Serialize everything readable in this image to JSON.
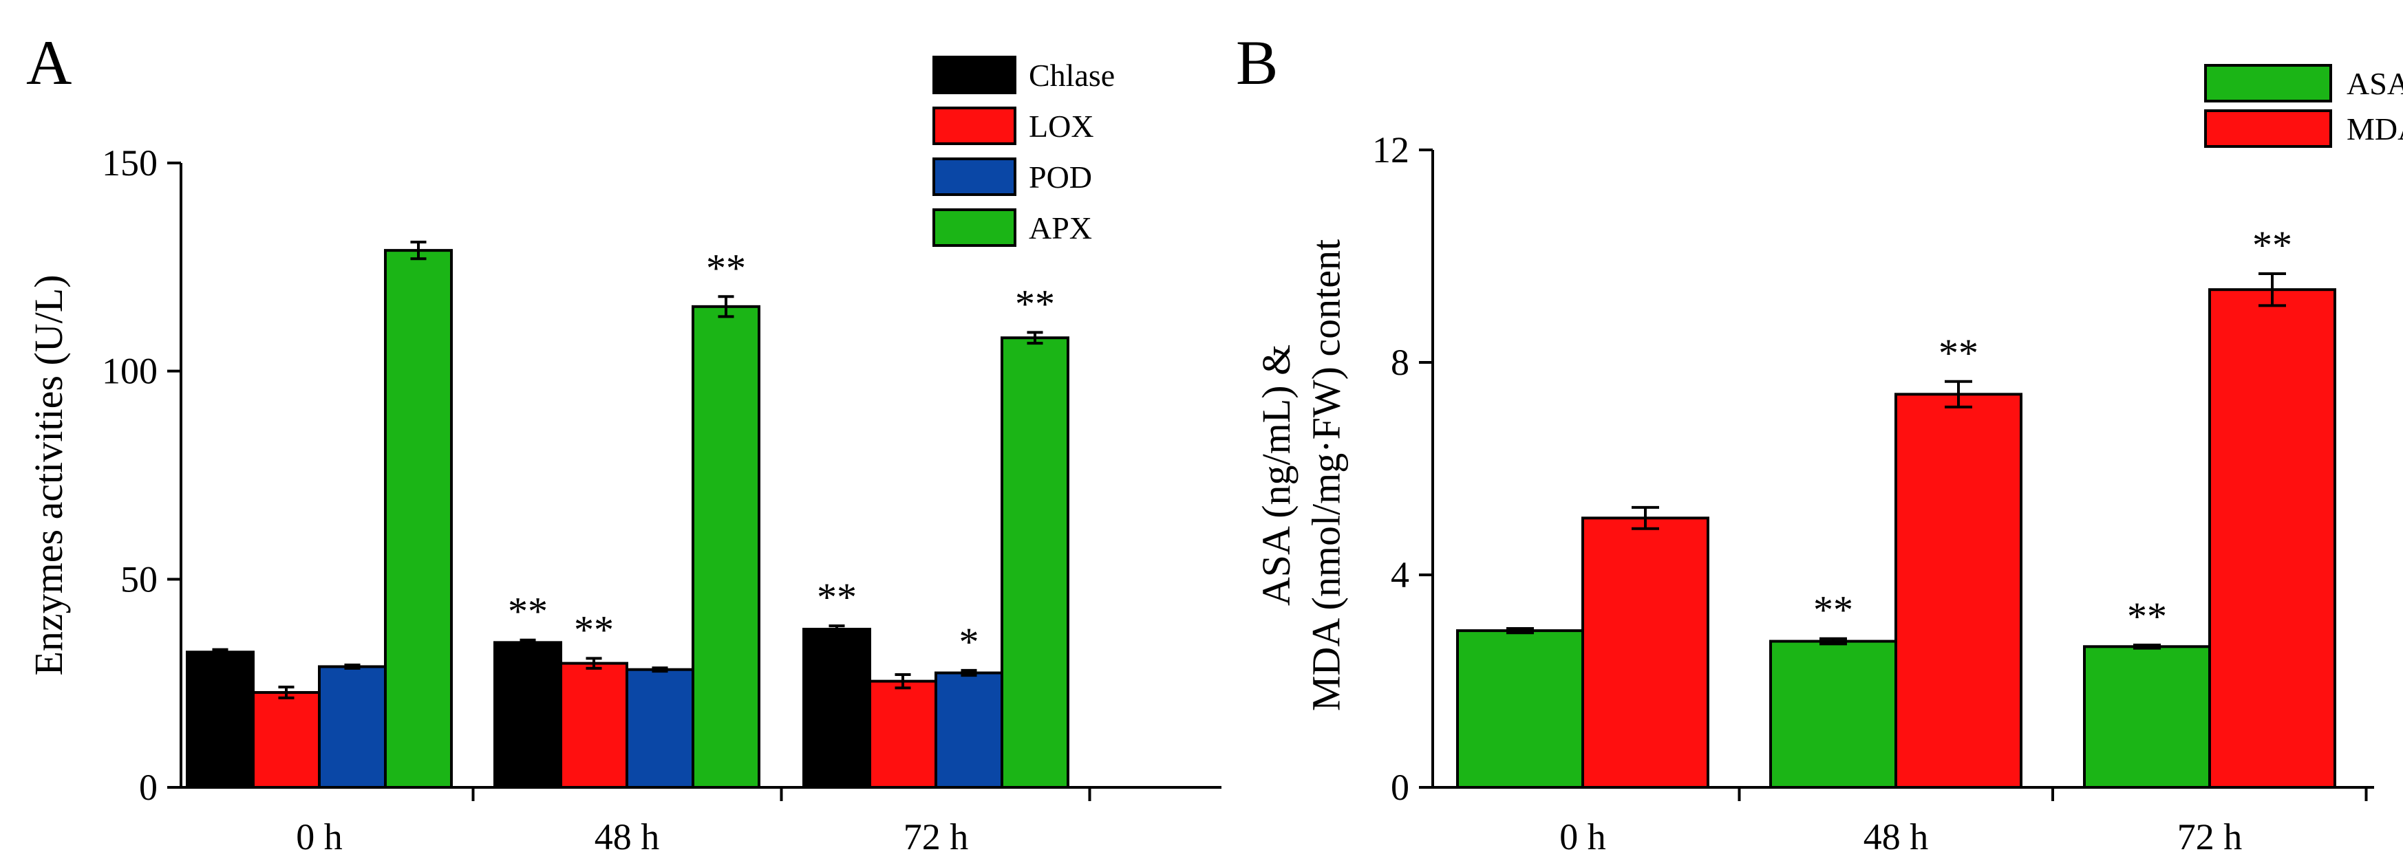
{
  "chart_data": [
    {
      "type": "bar",
      "panel_label": "A",
      "categories": [
        "0 h",
        "48 h",
        "72 h"
      ],
      "series": [
        {
          "name": "Chlase",
          "color": "#000000",
          "values": [
            32.5,
            34.8,
            38.0
          ],
          "errors": [
            0.6,
            0.6,
            0.8
          ],
          "significance": [
            "",
            "**",
            "**"
          ]
        },
        {
          "name": "LOX",
          "color": "#ff0f0f",
          "values": [
            22.8,
            29.8,
            25.5
          ],
          "errors": [
            1.3,
            1.2,
            1.6
          ],
          "significance": [
            "",
            "**",
            ""
          ]
        },
        {
          "name": "POD",
          "color": "#0a47a6",
          "values": [
            29.0,
            28.3,
            27.5
          ],
          "errors": [
            0.4,
            0.4,
            0.6
          ],
          "significance": [
            "",
            "",
            "*"
          ]
        },
        {
          "name": "APX",
          "color": "#1bb516",
          "values": [
            129.0,
            115.5,
            108.0
          ],
          "errors": [
            2.0,
            2.4,
            1.3
          ],
          "significance": [
            "",
            "**",
            "**"
          ]
        }
      ],
      "xlabel": "",
      "ylabel": "Enzymes activities (U/L)",
      "ylim": [
        0,
        150
      ],
      "yticks": [
        0,
        50,
        100,
        150
      ],
      "legend_position": "top-right",
      "grid": false
    },
    {
      "type": "bar",
      "panel_label": "B",
      "categories": [
        "0 h",
        "48 h",
        "72 h"
      ],
      "series": [
        {
          "name": "ASA",
          "color": "#1bb516",
          "values": [
            2.95,
            2.75,
            2.65
          ],
          "errors": [
            0.04,
            0.05,
            0.03
          ],
          "significance": [
            "",
            "**",
            "**"
          ]
        },
        {
          "name": "MDA",
          "color": "#ff0f0f",
          "values": [
            5.07,
            7.4,
            9.37
          ],
          "errors": [
            0.2,
            0.24,
            0.3
          ],
          "significance": [
            "",
            "**",
            "**"
          ]
        }
      ],
      "xlabel": "",
      "ylabel": "ASA (ng/mL) & MDA (nmol/mg·FW) content",
      "ylabel_lines": [
        "ASA (ng/mL) &",
        "MDA (nmol/mg·FW) content"
      ],
      "ylim": [
        0,
        12
      ],
      "yticks": [
        0,
        4,
        8,
        12
      ],
      "legend_position": "top-right",
      "grid": false
    }
  ]
}
